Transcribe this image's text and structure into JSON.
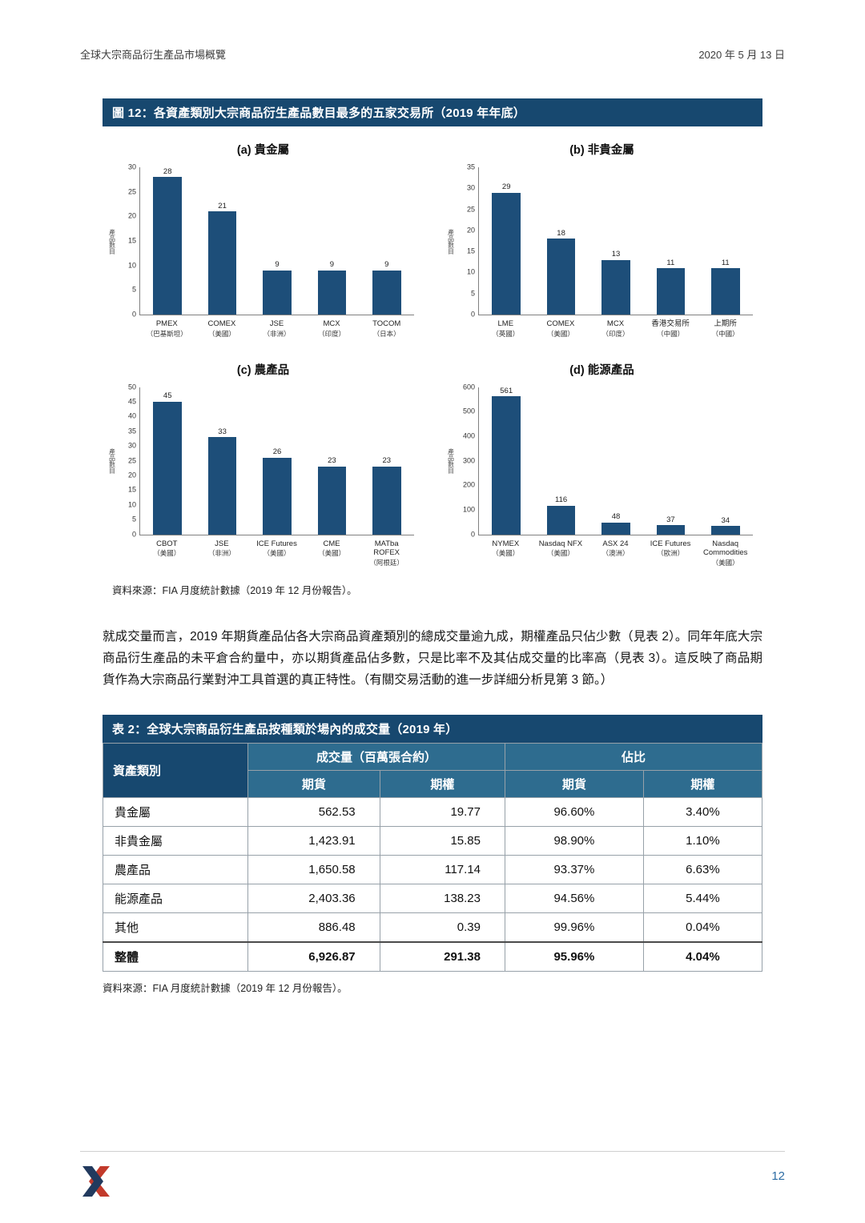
{
  "page": {
    "header_left": "全球大宗商品衍生產品市場概覽",
    "header_right": "2020 年 5 月 13 日",
    "footer_page_number": "12"
  },
  "colors": {
    "title_bar_navy": "#17486F",
    "table_subheader_blue": "#2E6C8F",
    "chart_bar_blue": "#1D4E79",
    "logo_navy": "#223A5E",
    "logo_red": "#C23A2B",
    "page_number_blue": "#2E6DA4"
  },
  "icons": {
    "footer_logo": "brand-x-mark"
  },
  "figure": {
    "title": "圖 12：各資產類別大宗商品衍生產品數目最多的五家交易所（2019 年年底）",
    "source": "資料來源：FIA 月度統計數據（2019 年 12 月份報告）。"
  },
  "chart_data": [
    {
      "type": "bar",
      "title": "(a) 貴金屬",
      "ylabel": "產品數目",
      "ylim": [
        0,
        30
      ],
      "ytick_step": 5,
      "grid": false,
      "categories": [
        "PMEX",
        "COMEX",
        "JSE",
        "MCX",
        "TOCOM"
      ],
      "countries": [
        "（巴基斯坦）",
        "（美國）",
        "（非洲）",
        "（印度）",
        "（日本）"
      ],
      "values": [
        28,
        21,
        9,
        9,
        9
      ]
    },
    {
      "type": "bar",
      "title": "(b) 非貴金屬",
      "ylabel": "產品數目",
      "ylim": [
        0,
        35
      ],
      "ytick_step": 5,
      "grid": false,
      "categories": [
        "LME",
        "COMEX",
        "MCX",
        "香港交易所",
        "上期所"
      ],
      "countries": [
        "（英國）",
        "（美國）",
        "（印度）",
        "（中國）",
        "（中國）"
      ],
      "values": [
        29,
        18,
        13,
        11,
        11
      ]
    },
    {
      "type": "bar",
      "title": "(c) 農產品",
      "ylabel": "產品數目",
      "ylim": [
        0,
        50
      ],
      "ytick_step": 5,
      "grid": false,
      "categories": [
        "CBOT",
        "JSE",
        "ICE Futures",
        "CME",
        "MATba ROFEX"
      ],
      "countries": [
        "（美國）",
        "（非洲）",
        "（美國）",
        "（美國）",
        "（阿根廷）"
      ],
      "values": [
        45,
        33,
        26,
        23,
        23
      ]
    },
    {
      "type": "bar",
      "title": "(d) 能源產品",
      "ylabel": "產品數目",
      "ylim": [
        0,
        600
      ],
      "ytick_step": 100,
      "grid": false,
      "categories": [
        "NYMEX",
        "Nasdaq NFX",
        "ASX 24",
        "ICE Futures",
        "Nasdaq Commodities"
      ],
      "countries": [
        "（美國）",
        "（美國）",
        "（澳洲）",
        "（歐洲）",
        "（美國）"
      ],
      "values": [
        561,
        116,
        48,
        37,
        34
      ]
    }
  ],
  "paragraph": "就成交量而言，2019 年期貨產品佔各大宗商品資產類別的總成交量逾九成，期權產品只佔少數（見表 2）。同年年底大宗商品衍生產品的未平倉合約量中，亦以期貨產品佔多數，只是比率不及其佔成交量的比率高（見表 3）。這反映了商品期貨作為大宗商品行業對沖工具首選的真正特性。（有關交易活動的進一步詳細分析見第 3 節。）",
  "table": {
    "title": "表 2：全球大宗商品衍生產品按種類於場內的成交量（2019 年）",
    "row_header": "資產類別",
    "col_group_volume": "成交量（百萬張合約）",
    "col_group_share": "佔比",
    "sub_headers": [
      "期貨",
      "期權",
      "期貨",
      "期權"
    ],
    "rows": [
      {
        "label": "貴金屬",
        "cells": [
          "562.53",
          "19.77",
          "96.60%",
          "3.40%"
        ],
        "total": false
      },
      {
        "label": "非貴金屬",
        "cells": [
          "1,423.91",
          "15.85",
          "98.90%",
          "1.10%"
        ],
        "total": false
      },
      {
        "label": "農產品",
        "cells": [
          "1,650.58",
          "117.14",
          "93.37%",
          "6.63%"
        ],
        "total": false
      },
      {
        "label": "能源產品",
        "cells": [
          "2,403.36",
          "138.23",
          "94.56%",
          "5.44%"
        ],
        "total": false
      },
      {
        "label": "其他",
        "cells": [
          "886.48",
          "0.39",
          "99.96%",
          "0.04%"
        ],
        "total": false
      },
      {
        "label": "整體",
        "cells": [
          "6,926.87",
          "291.38",
          "95.96%",
          "4.04%"
        ],
        "total": true
      }
    ],
    "source": "資料來源：FIA 月度統計數據（2019 年 12 月份報告）。"
  }
}
